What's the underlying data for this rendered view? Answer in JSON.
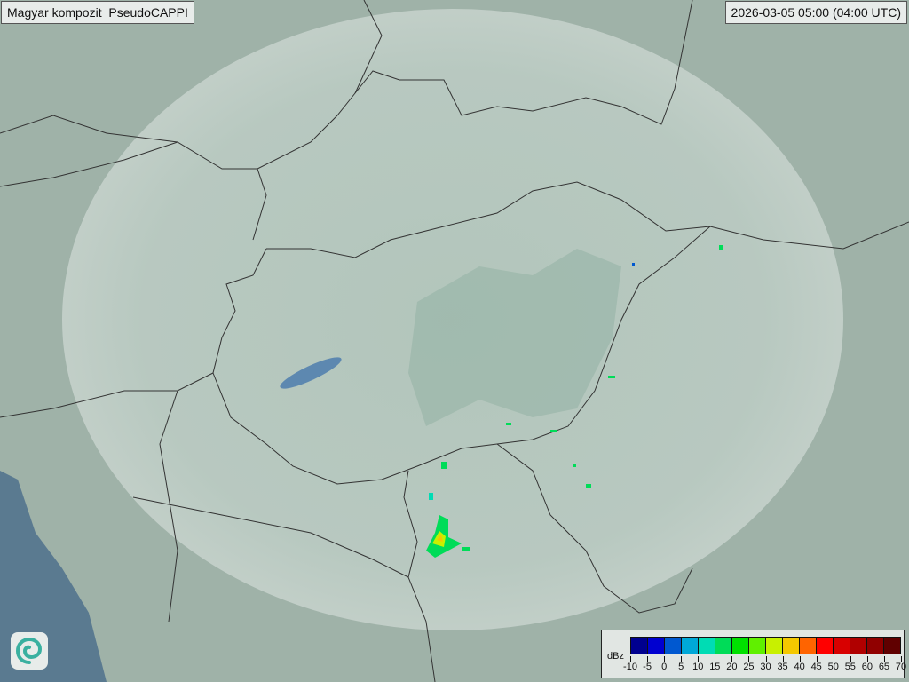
{
  "header": {
    "title": "Magyar kompozit  PseudoCAPPI",
    "timestamp": "2026-03-05 05:00 (04:00 UTC)"
  },
  "legend": {
    "unit": "dBz",
    "labels": [
      "-10",
      "-5",
      "0",
      "5",
      "10",
      "15",
      "20",
      "25",
      "30",
      "35",
      "40",
      "45",
      "50",
      "55",
      "60",
      "65",
      "70"
    ],
    "colors": [
      "#00008f",
      "#0000d0",
      "#0058d0",
      "#00a8d8",
      "#00dcb4",
      "#00dc58",
      "#00e000",
      "#60f000",
      "#c8f000",
      "#f4c800",
      "#ff6400",
      "#ff0000",
      "#d80000",
      "#b00000",
      "#900000",
      "#600000"
    ]
  },
  "logo": {
    "icon": "swirl-logo-icon"
  },
  "colors": {
    "land": "#9fb3a8",
    "sea": "#5a7a90",
    "coverage": "#c5d3cc",
    "border": "#333333"
  }
}
